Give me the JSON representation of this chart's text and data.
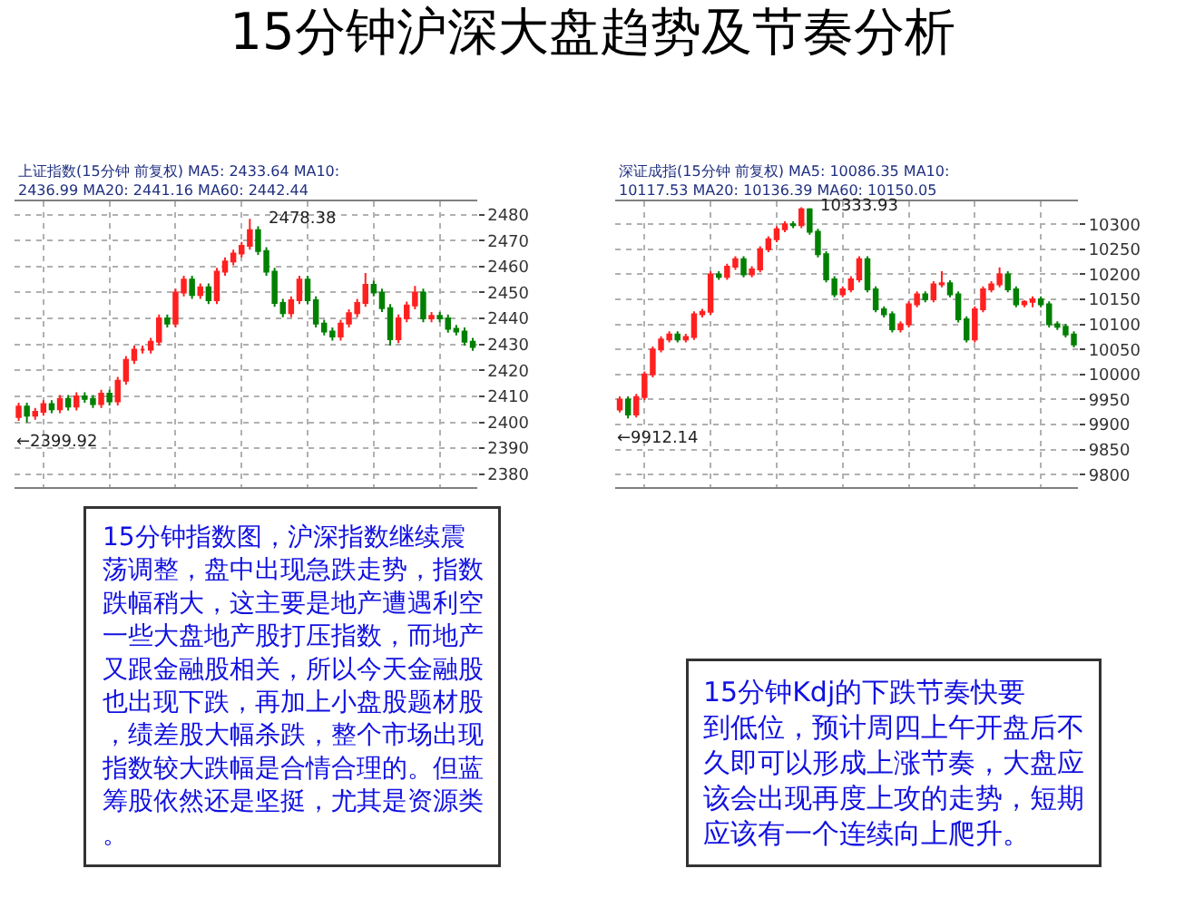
{
  "chart_data": [
    {
      "type": "candlestick",
      "title": "15分钟沪深大盘趋势及节奏分析",
      "subtitle": "上证指数(15分钟 前复权) MA5: 2433.64 MA10: 2436.99 MA20: 2441.16 MA60: 2442.44",
      "categories": [
        null,
        null,
        null,
        null,
        null,
        null,
        null,
        null,
        null,
        null,
        null,
        null,
        null,
        null,
        null,
        null,
        null,
        null,
        null,
        null,
        null,
        null,
        null,
        null,
        null,
        null,
        null,
        null,
        null,
        null,
        null,
        null,
        null,
        null,
        null,
        null,
        null,
        null,
        null,
        null,
        null,
        null,
        null,
        null,
        null,
        null,
        null,
        null,
        null,
        null,
        null,
        null,
        null,
        null,
        null,
        null
      ],
      "ohlc": [
        [
          2402,
          2407.5,
          2400.5,
          2406
        ],
        [
          2406,
          2407.5,
          2399.92,
          2402.5
        ],
        [
          2402.5,
          2405.5,
          2401,
          2404
        ],
        [
          2404,
          2408.5,
          2402.5,
          2407
        ],
        [
          2407,
          2408.5,
          2403.5,
          2405
        ],
        [
          2405,
          2410.5,
          2403.5,
          2409
        ],
        [
          2409,
          2410.5,
          2404.5,
          2406
        ],
        [
          2406,
          2411.5,
          2404.5,
          2410
        ],
        [
          2410,
          2411.5,
          2407.5,
          2409
        ],
        [
          2409,
          2410.5,
          2405.5,
          2407
        ],
        [
          2407,
          2412.5,
          2405.5,
          2411
        ],
        [
          2411,
          2412.5,
          2406.5,
          2408
        ],
        [
          2408,
          2417.5,
          2406.5,
          2416
        ],
        [
          2416,
          2425.5,
          2414.5,
          2424
        ],
        [
          2424,
          2429.5,
          2422.5,
          2428
        ],
        [
          2428,
          2429.5,
          2426.5,
          2428
        ],
        [
          2428,
          2432.5,
          2426.5,
          2431
        ],
        [
          2431,
          2441.5,
          2429.5,
          2440
        ],
        [
          2440,
          2441.5,
          2436.5,
          2438
        ],
        [
          2438,
          2451.5,
          2436.5,
          2450
        ],
        [
          2450,
          2456.5,
          2448.5,
          2455
        ],
        [
          2455,
          2456.5,
          2447.5,
          2449
        ],
        [
          2449,
          2453.5,
          2447.5,
          2452
        ],
        [
          2452,
          2453.5,
          2445.5,
          2447
        ],
        [
          2447,
          2459.5,
          2445.5,
          2458
        ],
        [
          2458,
          2463.5,
          2456.5,
          2462
        ],
        [
          2462,
          2466.5,
          2460.5,
          2465
        ],
        [
          2465,
          2469.5,
          2463.5,
          2468
        ],
        [
          2468,
          2478.38,
          2466.5,
          2474
        ],
        [
          2474,
          2475.5,
          2464.5,
          2466
        ],
        [
          2466,
          2467.5,
          2456.5,
          2458
        ],
        [
          2458,
          2459.5,
          2444.5,
          2446
        ],
        [
          2446,
          2447.5,
          2440.5,
          2442
        ],
        [
          2442,
          2448.5,
          2440.5,
          2447
        ],
        [
          2447,
          2456.5,
          2445.5,
          2455
        ],
        [
          2455,
          2456.5,
          2445.5,
          2447
        ],
        [
          2447,
          2448.5,
          2436.5,
          2438
        ],
        [
          2438,
          2439.5,
          2433.5,
          2435
        ],
        [
          2435,
          2436.5,
          2431.5,
          2433
        ],
        [
          2433,
          2439.5,
          2431.5,
          2438
        ],
        [
          2438,
          2443.5,
          2436.5,
          2442
        ],
        [
          2442,
          2447.5,
          2440.5,
          2446
        ],
        [
          2446,
          2457.5,
          2444.5,
          2453
        ],
        [
          2453,
          2454.5,
          2448.5,
          2450
        ],
        [
          2450,
          2451.5,
          2442.5,
          2444
        ],
        [
          2444,
          2445.5,
          2429.5,
          2432
        ],
        [
          2432,
          2441.5,
          2430.5,
          2440
        ],
        [
          2440,
          2446.5,
          2438.5,
          2445
        ],
        [
          2445,
          2452.5,
          2443.5,
          2450
        ],
        [
          2450,
          2451.5,
          2438.5,
          2440
        ],
        [
          2440,
          2442.5,
          2438.5,
          2441
        ],
        [
          2441,
          2442.5,
          2438.5,
          2440
        ],
        [
          2440,
          2441.5,
          2434.5,
          2436
        ],
        [
          2436,
          2437.5,
          2433.5,
          2435
        ],
        [
          2435,
          2436.5,
          2429.5,
          2431
        ],
        [
          2431,
          2432.5,
          2427.5,
          2429
        ]
      ],
      "ylim": [
        2375,
        2485
      ],
      "yticks": [
        2380,
        2390,
        2400,
        2410,
        2420,
        2430,
        2440,
        2450,
        2460,
        2470,
        2480
      ],
      "grid": true,
      "tick_labels": "y",
      "annotations": [
        "2478.38",
        "←2399.92",
        "15分钟指数图，沪深指数继续震荡调整，盘中出现急跌走势，指数跌幅稍大，这主要是地产遭遇利空一些大盘地产股打压指数，而地产又跟金融股相关，所以今天金融股也出现下跌，再加上小盘股题材股，绩差股大幅杀跌，整个市场出现指数较大跌幅是合情合理的。但蓝筹股依然还是坚挺，尤其是资源类。"
      ]
    },
    {
      "type": "candlestick",
      "subtitle": "深证成指(15分钟 前复权) MA5: 10086.35 MA10: 10117.53 MA20: 10136.39 MA60: 10150.05",
      "categories": [
        null,
        null,
        null,
        null,
        null,
        null,
        null,
        null,
        null,
        null,
        null,
        null,
        null,
        null,
        null,
        null,
        null,
        null,
        null,
        null,
        null,
        null,
        null,
        null,
        null,
        null,
        null,
        null,
        null,
        null,
        null,
        null,
        null,
        null,
        null,
        null,
        null,
        null,
        null,
        null,
        null,
        null,
        null,
        null,
        null,
        null,
        null,
        null,
        null,
        null,
        null,
        null,
        null,
        null,
        null,
        null
      ],
      "ohlc": [
        [
          9930,
          9956,
          9924,
          9950
        ],
        [
          9950,
          9956,
          9912.14,
          9920
        ],
        [
          9920,
          9961,
          9914,
          9955
        ],
        [
          9955,
          10006,
          9949,
          10000
        ],
        [
          10000,
          10056,
          9994,
          10050
        ],
        [
          10050,
          10076,
          10044,
          10070
        ],
        [
          10070,
          10086,
          10064,
          10080
        ],
        [
          10080,
          10086,
          10064,
          10070
        ],
        [
          10070,
          10081,
          10064,
          10075
        ],
        [
          10075,
          10126,
          10069,
          10120
        ],
        [
          10120,
          10131,
          10114,
          10125
        ],
        [
          10125,
          10206,
          10119,
          10200
        ],
        [
          10200,
          10206,
          10189,
          10195
        ],
        [
          10195,
          10221,
          10189,
          10215
        ],
        [
          10215,
          10236,
          10209,
          10230
        ],
        [
          10230,
          10236,
          10194,
          10200
        ],
        [
          10200,
          10216,
          10194,
          10210
        ],
        [
          10210,
          10256,
          10204,
          10250
        ],
        [
          10250,
          10276,
          10244,
          10270
        ],
        [
          10270,
          10296,
          10264,
          10290
        ],
        [
          10290,
          10306,
          10284,
          10300
        ],
        [
          10300,
          10306,
          10292,
          10298
        ],
        [
          10298,
          10333.93,
          10292,
          10330
        ],
        [
          10330,
          10332,
          10279,
          10285
        ],
        [
          10285,
          10291,
          10234,
          10240
        ],
        [
          10240,
          10246,
          10184,
          10190
        ],
        [
          10190,
          10196,
          10154,
          10160
        ],
        [
          10160,
          10176,
          10154,
          10170
        ],
        [
          10170,
          10196,
          10164,
          10190
        ],
        [
          10190,
          10236,
          10184,
          10230
        ],
        [
          10230,
          10236,
          10164,
          10170
        ],
        [
          10170,
          10176,
          10124,
          10130
        ],
        [
          10130,
          10136,
          10114,
          10120
        ],
        [
          10120,
          10126,
          10084,
          10090
        ],
        [
          10090,
          10106,
          10084,
          10100
        ],
        [
          10100,
          10146,
          10094,
          10140
        ],
        [
          10140,
          10166,
          10134,
          10160
        ],
        [
          10160,
          10166,
          10144,
          10150
        ],
        [
          10150,
          10186,
          10144,
          10180
        ],
        [
          10180,
          10206,
          10174,
          10182
        ],
        [
          10182,
          10188,
          10154,
          10160
        ],
        [
          10160,
          10166,
          10104,
          10110
        ],
        [
          10110,
          10116,
          10064,
          10070
        ],
        [
          10070,
          10136,
          10064,
          10130
        ],
        [
          10130,
          10176,
          10124,
          10170
        ],
        [
          10170,
          10186,
          10164,
          10180
        ],
        [
          10180,
          10214,
          10174,
          10200
        ],
        [
          10200,
          10206,
          10164,
          10170
        ],
        [
          10170,
          10176,
          10134,
          10140
        ],
        [
          10140,
          10148,
          10134,
          10145
        ],
        [
          10145,
          10156,
          10134,
          10150
        ],
        [
          10150,
          10156,
          10134,
          10140
        ],
        [
          10140,
          10146,
          10094,
          10100
        ],
        [
          10100,
          10106,
          10089,
          10095
        ],
        [
          10095,
          10101,
          10074,
          10080
        ],
        [
          10080,
          10086,
          10054,
          10060
        ]
      ],
      "ylim": [
        9775,
        10345
      ],
      "yticks": [
        9800,
        9850,
        9900,
        9950,
        10000,
        10050,
        10100,
        10150,
        10200,
        10250,
        10300
      ],
      "grid": true,
      "tick_labels": "y",
      "annotations": [
        "10333.93",
        "←9912.14",
        "15分钟Kdj的下跌节奏快要到低位，预计周四上午开盘后不久即可以形成上涨节奏，大盘应该会出现再度上攻的走势，短期应该有一个连续向上爬升。"
      ]
    }
  ]
}
